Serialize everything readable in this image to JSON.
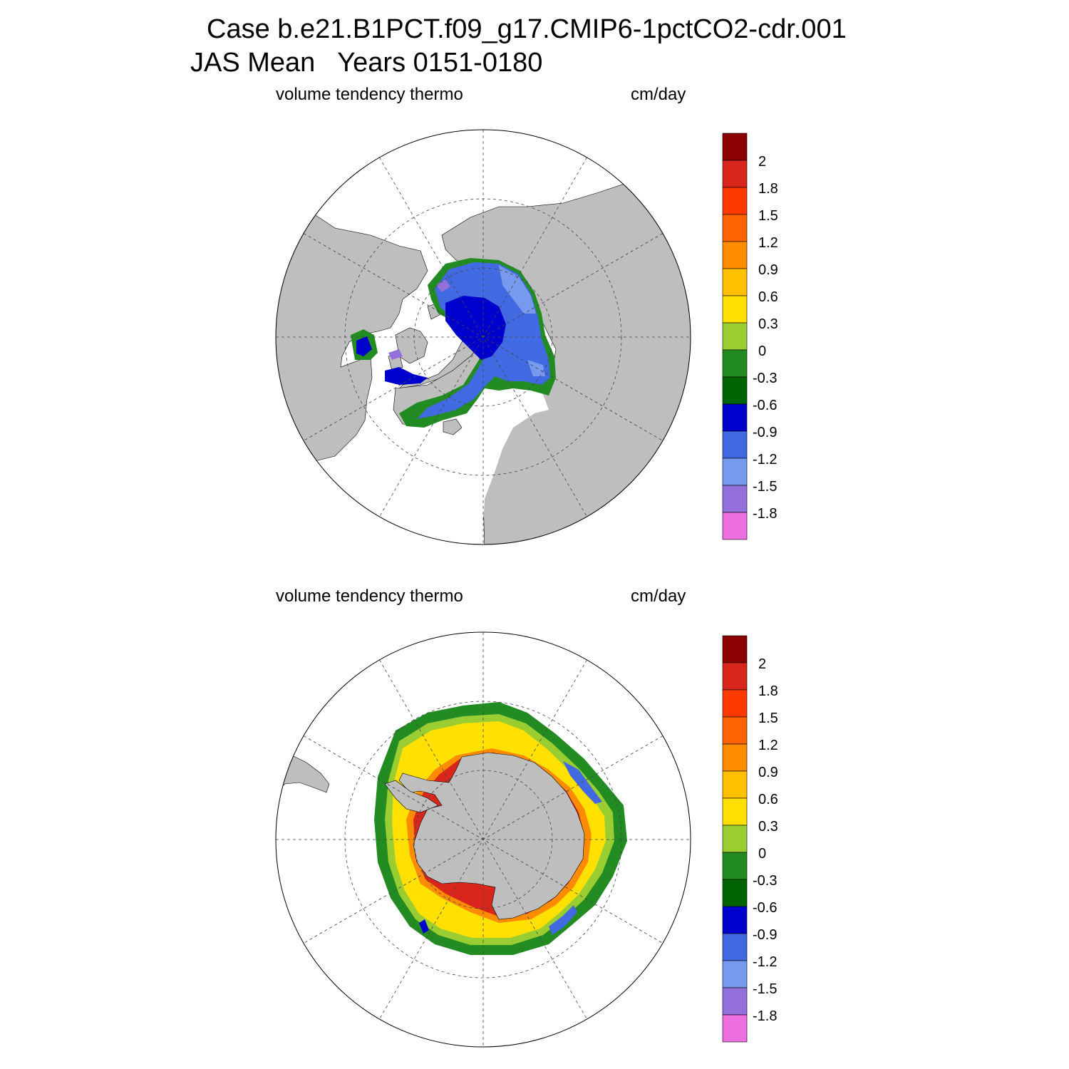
{
  "figure": {
    "title_line1": "Case b.e21.B1PCT.f09_g17.CMIP6-1pctCO2-cdr.001",
    "title_line2": "JAS Mean   Years 0151-0180"
  },
  "colors": {
    "land": "#bebebe",
    "grid": "#444444"
  },
  "panels": [
    {
      "hemisphere": "north",
      "left_label": "volume tendency thermo",
      "right_label": "cm/day",
      "sea_ice_field": "volume tendency thermo (JAS)",
      "dominant_values": "negative (-0.3 to -1.8 cm/day) over the Arctic basin"
    },
    {
      "hemisphere": "south",
      "left_label": "volume tendency thermo",
      "right_label": "cm/day",
      "sea_ice_field": "volume tendency thermo (JAS)",
      "dominant_values": "positive (0.3 to 2 cm/day) in a ring around Antarctica"
    }
  ],
  "colorbar": {
    "tick_labels": [
      "2",
      "1.8",
      "1.5",
      "1.2",
      "0.9",
      "0.6",
      "0.3",
      "0",
      "-0.3",
      "-0.6",
      "-0.9",
      "-1.2",
      "-1.5",
      "-1.8"
    ],
    "colors": [
      "#8b0000",
      "#d9261c",
      "#ff3a00",
      "#ff6400",
      "#ff8c00",
      "#ffc000",
      "#ffe000",
      "#9acd32",
      "#228b22",
      "#006400",
      "#0000cd",
      "#4169e1",
      "#7799ee",
      "#9370db",
      "#ee6fe0"
    ]
  }
}
